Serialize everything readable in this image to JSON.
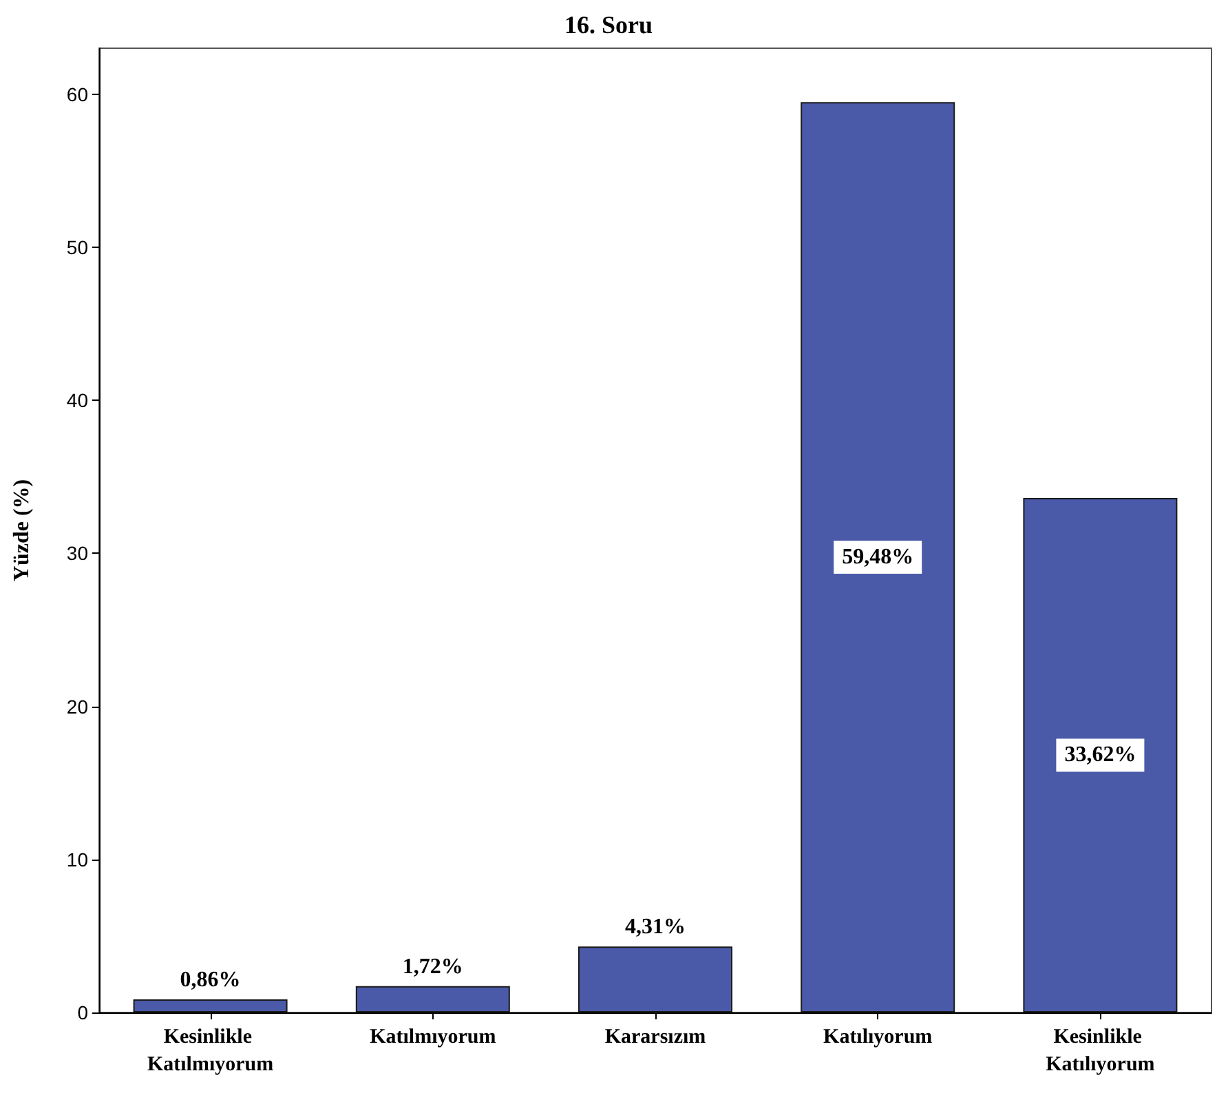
{
  "chart_data": {
    "type": "bar",
    "title": "16. Soru",
    "ylabel": "Yüzde (%)",
    "categories": [
      "Kesinlikle Katılmıyorum",
      "Katılmıyorum",
      "Kararsızım",
      "Katılıyorum",
      "Kesinlikle Katılıyorum"
    ],
    "values": [
      0.86,
      1.72,
      4.31,
      59.48,
      33.62
    ],
    "value_labels": [
      "0,86%",
      "1,72%",
      "4,31%",
      "59,48%",
      "33,62%"
    ],
    "color": "#4a5aa8",
    "ylim": [
      0,
      63
    ],
    "yticks": [
      0,
      10,
      20,
      30,
      40,
      50,
      60
    ],
    "grid": false
  }
}
